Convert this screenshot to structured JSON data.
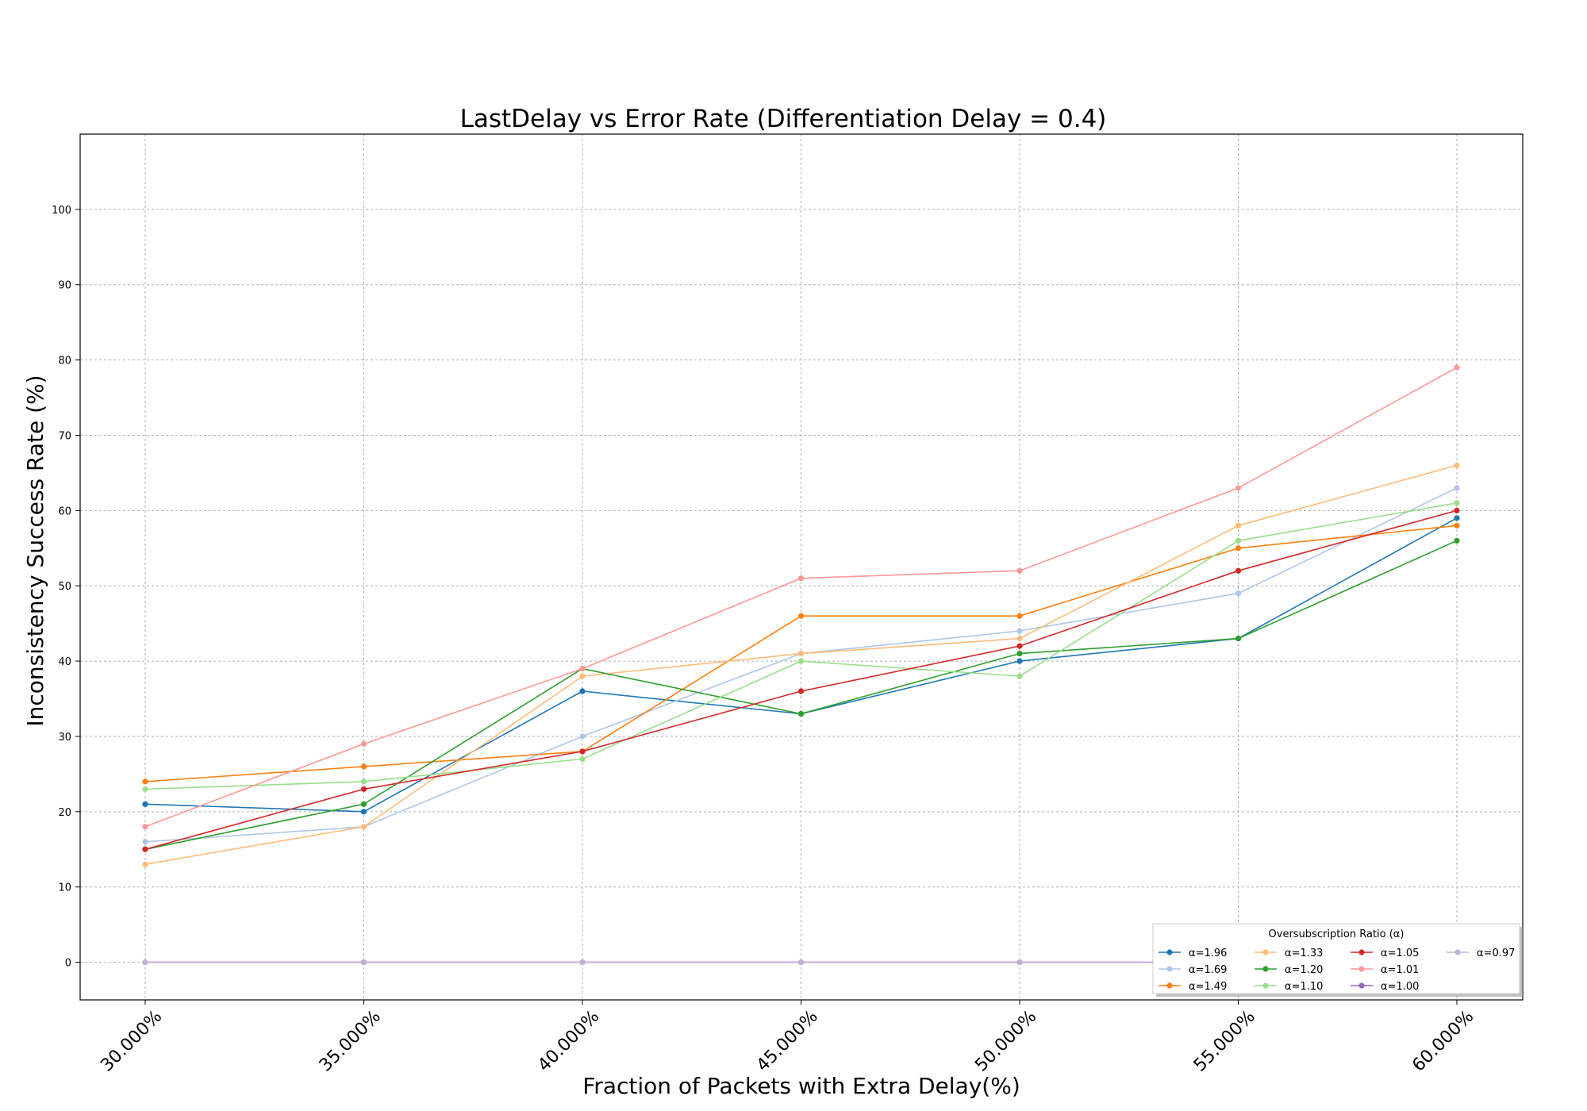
{
  "chart_data": {
    "type": "line",
    "title": "LastDelay vs Error Rate (Differentiation Delay = 0.4)",
    "xlabel": "Fraction of Packets with Extra Delay(%)",
    "ylabel": "Inconsistency Success Rate (%)",
    "categories": [
      "30.000%",
      "35.000%",
      "40.000%",
      "45.000%",
      "50.000%",
      "55.000%",
      "60.000%"
    ],
    "ylim": [
      -5,
      110
    ],
    "yticks": [
      0,
      10,
      20,
      30,
      40,
      50,
      60,
      70,
      80,
      90,
      100
    ],
    "grid": true,
    "legend": {
      "title": "Oversubscription Ratio (α)",
      "position": "bottom-right",
      "columns": 4
    },
    "series": [
      {
        "name": "α=1.96",
        "color": "#1f77b4",
        "values": [
          21,
          20,
          36,
          33,
          40,
          43,
          59
        ]
      },
      {
        "name": "α=1.69",
        "color": "#aec7e8",
        "values": [
          16,
          18,
          30,
          41,
          44,
          49,
          63
        ]
      },
      {
        "name": "α=1.49",
        "color": "#ff7f0e",
        "values": [
          24,
          26,
          28,
          46,
          46,
          55,
          58
        ]
      },
      {
        "name": "α=1.33",
        "color": "#ffbb78",
        "values": [
          13,
          18,
          38,
          41,
          43,
          58,
          66
        ]
      },
      {
        "name": "α=1.20",
        "color": "#2ca02c",
        "values": [
          15,
          21,
          39,
          33,
          41,
          43,
          56
        ]
      },
      {
        "name": "α=1.10",
        "color": "#98df8a",
        "values": [
          23,
          24,
          27,
          40,
          38,
          56,
          61
        ]
      },
      {
        "name": "α=1.05",
        "color": "#d62728",
        "values": [
          15,
          23,
          28,
          36,
          42,
          52,
          60
        ]
      },
      {
        "name": "α=1.01",
        "color": "#ff9896",
        "values": [
          18,
          29,
          39,
          51,
          52,
          63,
          79
        ]
      },
      {
        "name": "α=1.00",
        "color": "#9467bd",
        "values": [
          0,
          0,
          0,
          0,
          0,
          0,
          0
        ]
      },
      {
        "name": "α=0.97",
        "color": "#c5b0d5",
        "values": [
          0,
          0,
          0,
          0,
          0,
          0,
          0
        ]
      }
    ]
  }
}
